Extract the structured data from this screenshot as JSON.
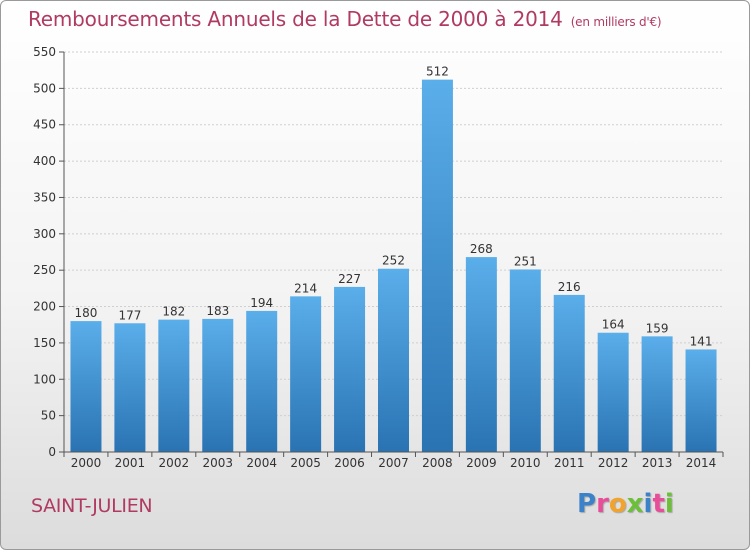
{
  "title": "Remboursements Annuels de la Dette de 2000 à 2014",
  "subtitle": "(en milliers d'€)",
  "commune": "SAINT-JULIEN",
  "logo": {
    "letters": [
      {
        "char": "P",
        "color": "#3c82c8"
      },
      {
        "char": "r",
        "color": "#e84d9a"
      },
      {
        "char": "o",
        "color": "#f2a32b"
      },
      {
        "char": "x",
        "color": "#6cbf3a"
      },
      {
        "char": "i",
        "color": "#3c82c8"
      },
      {
        "char": "t",
        "color": "#e84d9a"
      },
      {
        "char": "i",
        "color": "#6cbf3a"
      }
    ]
  },
  "colors": {
    "bar_top": "#5aaeea",
    "bar_bottom": "#2a73b3",
    "title": "#b03a62"
  },
  "chart_data": {
    "type": "bar",
    "title": "Remboursements Annuels de la Dette de 2000 à 2014",
    "categories": [
      "2000",
      "2001",
      "2002",
      "2003",
      "2004",
      "2005",
      "2006",
      "2007",
      "2008",
      "2009",
      "2010",
      "2011",
      "2012",
      "2013",
      "2014"
    ],
    "values": [
      180,
      177,
      182,
      183,
      194,
      214,
      227,
      252,
      512,
      268,
      251,
      216,
      164,
      159,
      141
    ],
    "yticks": [
      0,
      50,
      100,
      150,
      200,
      250,
      300,
      350,
      400,
      450,
      500,
      550
    ],
    "ylim": [
      0,
      550
    ],
    "grid": true
  }
}
